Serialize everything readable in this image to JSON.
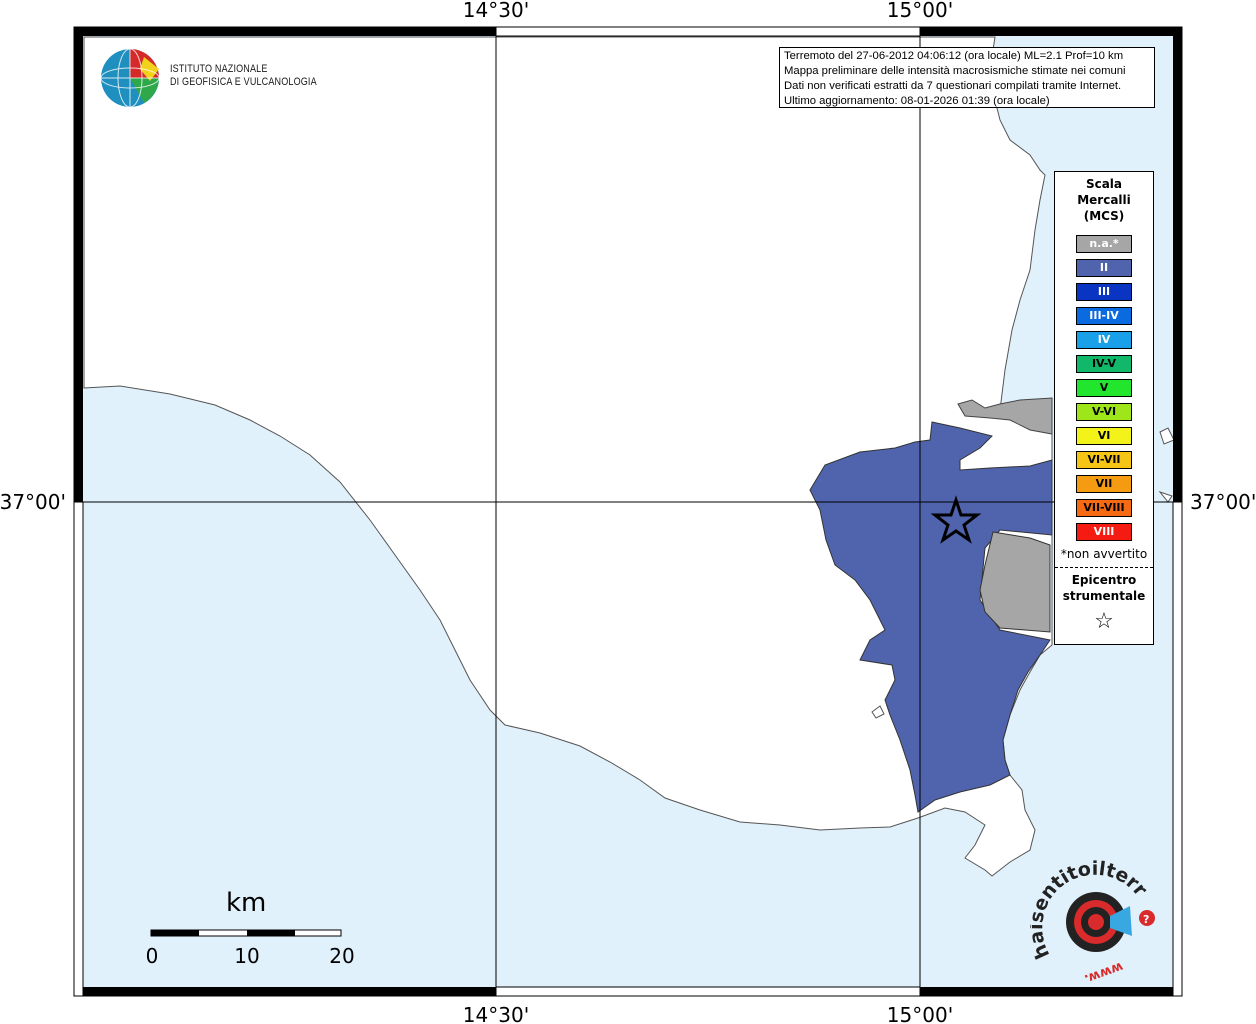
{
  "axes": {
    "top_left_label": "14°30'",
    "top_right_label": "15°00'",
    "bottom_left_label": "14°30'",
    "bottom_right_label": "15°00'",
    "left_label": "37°00'",
    "right_label": "37°00'"
  },
  "institute": {
    "line1": "ISTITUTO NAZIONALE",
    "line2": "DI GEOFISICA E VULCANOLOGIA"
  },
  "info": {
    "line1": "Terremoto del 27-06-2012 04:06:12 (ora locale) ML=2.1 Prof=10 km",
    "line2": "Mappa preliminare delle intensità macrosismiche stimate nei comuni",
    "line3": "Dati non verificati estratti da 7 questionari compilati tramite Internet.",
    "line4": "Ultimo aggiornamento: 08-01-2026 01:39 (ora locale)"
  },
  "legend": {
    "title_line1": "Scala",
    "title_line2": "Mercalli",
    "title_line3": "(MCS)",
    "items": [
      {
        "label": "n.a.*",
        "color": "#a6a6a6"
      },
      {
        "label": "II",
        "color": "#4f64ad"
      },
      {
        "label": "III",
        "color": "#0a35c2"
      },
      {
        "label": "III-IV",
        "color": "#0a6ae0"
      },
      {
        "label": "IV",
        "color": "#1aa0e8"
      },
      {
        "label": "IV-V",
        "color": "#12b86a"
      },
      {
        "label": "V",
        "color": "#22e62e"
      },
      {
        "label": "V-VI",
        "color": "#9ee61a"
      },
      {
        "label": "VI",
        "color": "#f3f31a"
      },
      {
        "label": "VI-VII",
        "color": "#f5c414"
      },
      {
        "label": "VII",
        "color": "#f59b12"
      },
      {
        "label": "VII-VIII",
        "color": "#f56a12"
      },
      {
        "label": "VIII",
        "color": "#f51a12"
      }
    ],
    "note": "*non avvertito",
    "epicenter_line1": "Epicentro",
    "epicenter_line2": "strumentale",
    "epicenter_symbol": "☆"
  },
  "scalebar": {
    "unit": "km",
    "ticks": [
      "0",
      "10",
      "20"
    ]
  },
  "brand": {
    "text_main": "haisentitoilterremoto.it",
    "text_prefix": "www."
  },
  "colors": {
    "sea": "#e1f1fb",
    "land": "#ffffff",
    "intensity_II": "#4f64ad",
    "not_felt": "#a6a6a6"
  }
}
